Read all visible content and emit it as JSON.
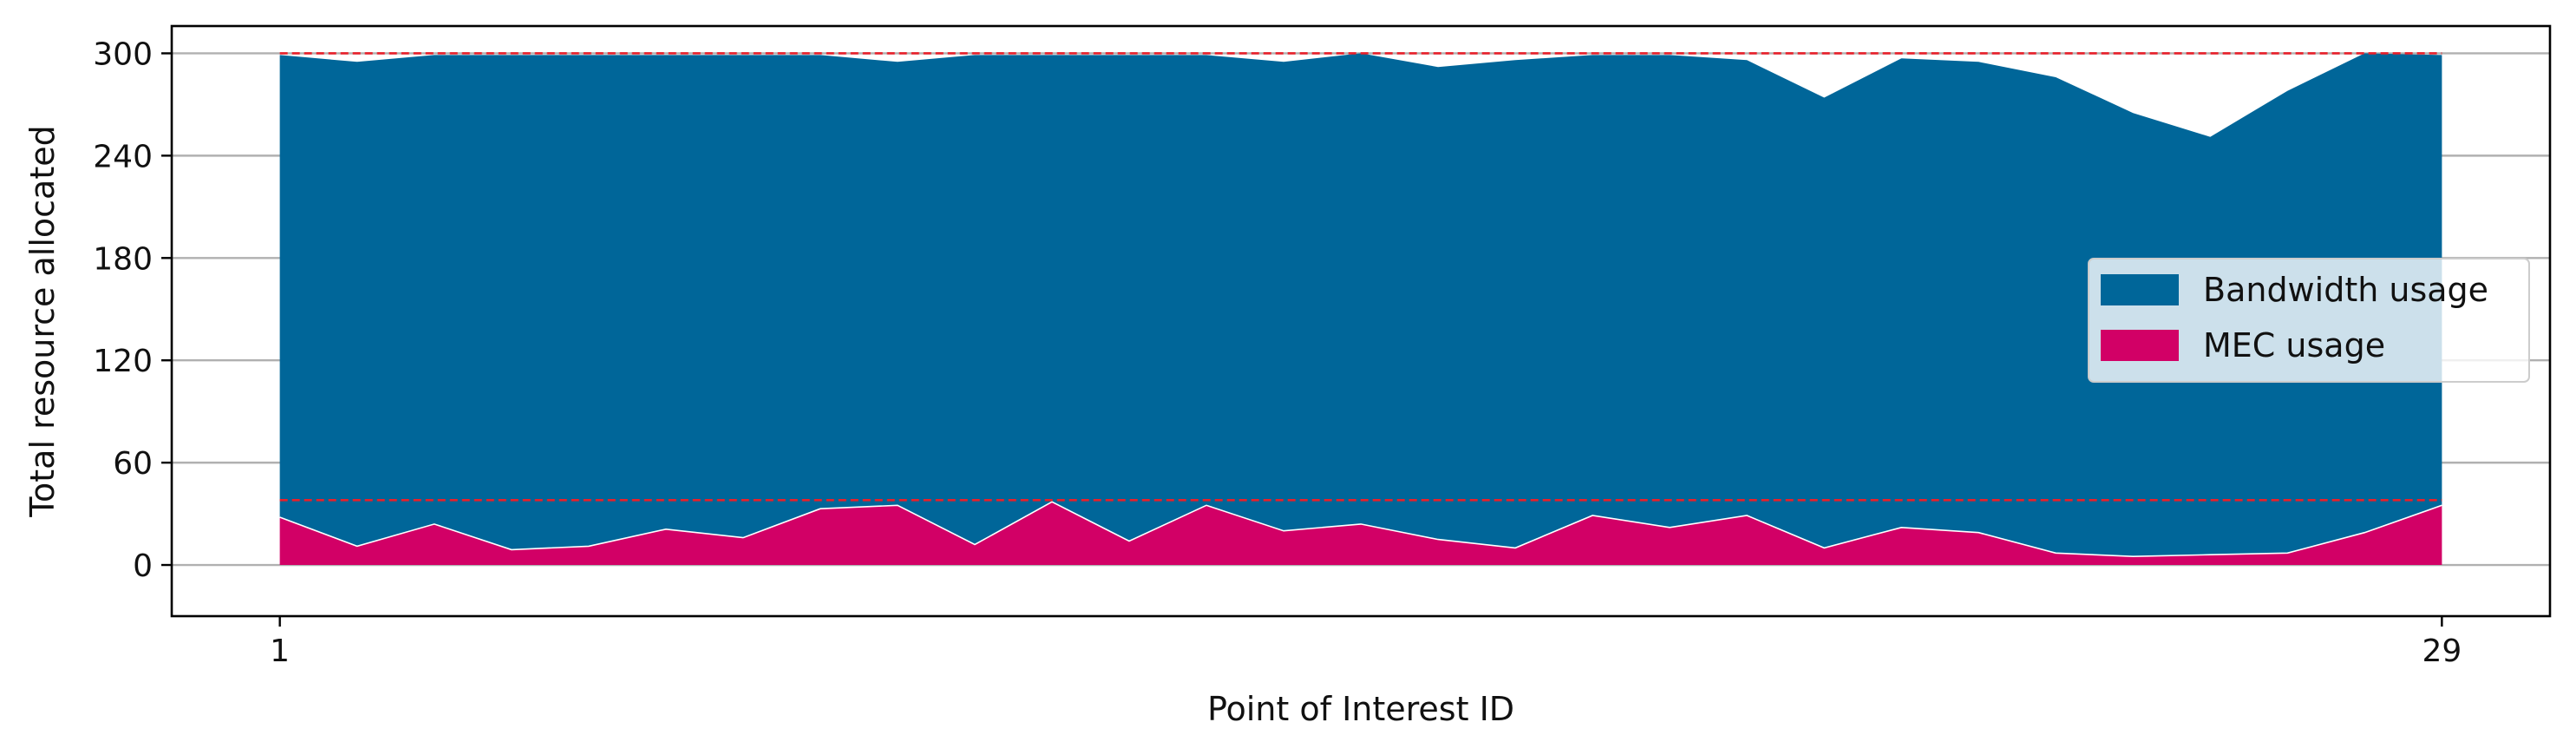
{
  "chart_data": {
    "type": "area",
    "stacked": true,
    "xlabel": "Point of Interest ID",
    "ylabel": "Total resource allocated",
    "x": [
      1,
      2,
      3,
      4,
      5,
      6,
      7,
      8,
      9,
      10,
      11,
      12,
      13,
      14,
      15,
      16,
      17,
      18,
      19,
      20,
      21,
      22,
      23,
      24,
      25,
      26,
      27,
      28,
      29
    ],
    "xticks": [
      1,
      29
    ],
    "xlim": [
      -0.4,
      30.4
    ],
    "ylim": [
      -30,
      316
    ],
    "yticks": [
      0,
      60,
      120,
      180,
      240,
      300
    ],
    "grid": "horizontal",
    "legend_position": "center-right",
    "series": [
      {
        "name": "MEC usage",
        "color": "#d20066",
        "values": [
          28,
          11,
          24,
          9,
          11,
          21,
          16,
          33,
          35,
          12,
          37,
          14,
          35,
          20,
          24,
          15,
          10,
          29,
          22,
          29,
          10,
          22,
          19,
          7,
          5,
          6,
          7,
          19,
          35
        ]
      },
      {
        "name": "Bandwidth usage",
        "color": "#006699",
        "values": [
          271,
          284,
          275,
          290,
          288,
          278,
          283,
          266,
          260,
          287,
          262,
          285,
          264,
          275,
          276,
          277,
          286,
          270,
          277,
          267,
          264,
          275,
          276,
          279,
          260,
          245,
          271,
          281,
          264
        ]
      }
    ],
    "reference_lines": [
      {
        "y": 300,
        "color": "#e8202a",
        "style": "dashed"
      },
      {
        "y": 38,
        "color": "#e8202a",
        "style": "dashed"
      }
    ]
  }
}
